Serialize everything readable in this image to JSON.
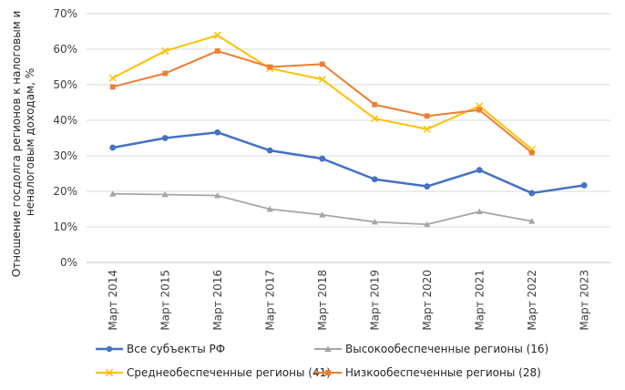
{
  "chart_data": {
    "type": "line",
    "title": "",
    "xlabel": "",
    "ylabel_lines": [
      "Отношение госдолга регионов к налоговым и",
      "неналоговым доходам, %"
    ],
    "categories": [
      "Март 2014",
      "Март 2015",
      "Март 2016",
      "Март 2017",
      "Март 2018",
      "Март 2019",
      "Март 2020",
      "Март 2021",
      "Март 2022",
      "Март 2023"
    ],
    "ylim": [
      0,
      70
    ],
    "yticks": [
      0,
      10,
      20,
      30,
      40,
      50,
      60,
      70
    ],
    "ytick_labels": [
      "0%",
      "10%",
      "20%",
      "30%",
      "40%",
      "50%",
      "60%",
      "70%"
    ],
    "grid": true,
    "legend_position": "bottom",
    "series": [
      {
        "name": "Все субъекты РФ",
        "color": "#4472c4",
        "marker": "circle",
        "values": [
          32.3,
          35.0,
          36.6,
          31.5,
          29.2,
          23.4,
          21.4,
          26.0,
          19.5,
          21.7
        ]
      },
      {
        "name": "Высокообеспеченные регионы (16)",
        "color": "#a5a5a5",
        "marker": "triangle",
        "values": [
          19.3,
          19.1,
          18.8,
          15.0,
          13.4,
          11.4,
          10.7,
          14.3,
          11.6,
          null
        ]
      },
      {
        "name": "Среднеобеспеченные регионы (41)",
        "color": "#ffc000",
        "marker": "x",
        "values": [
          51.9,
          59.5,
          63.9,
          54.6,
          51.5,
          40.5,
          37.5,
          44.0,
          31.8,
          null
        ]
      },
      {
        "name": "Низкообеспеченные регионы (28)",
        "color": "#ed7d31",
        "marker": "square",
        "values": [
          49.4,
          53.2,
          59.5,
          55.0,
          55.8,
          44.4,
          41.2,
          42.9,
          30.9,
          null
        ]
      }
    ]
  }
}
